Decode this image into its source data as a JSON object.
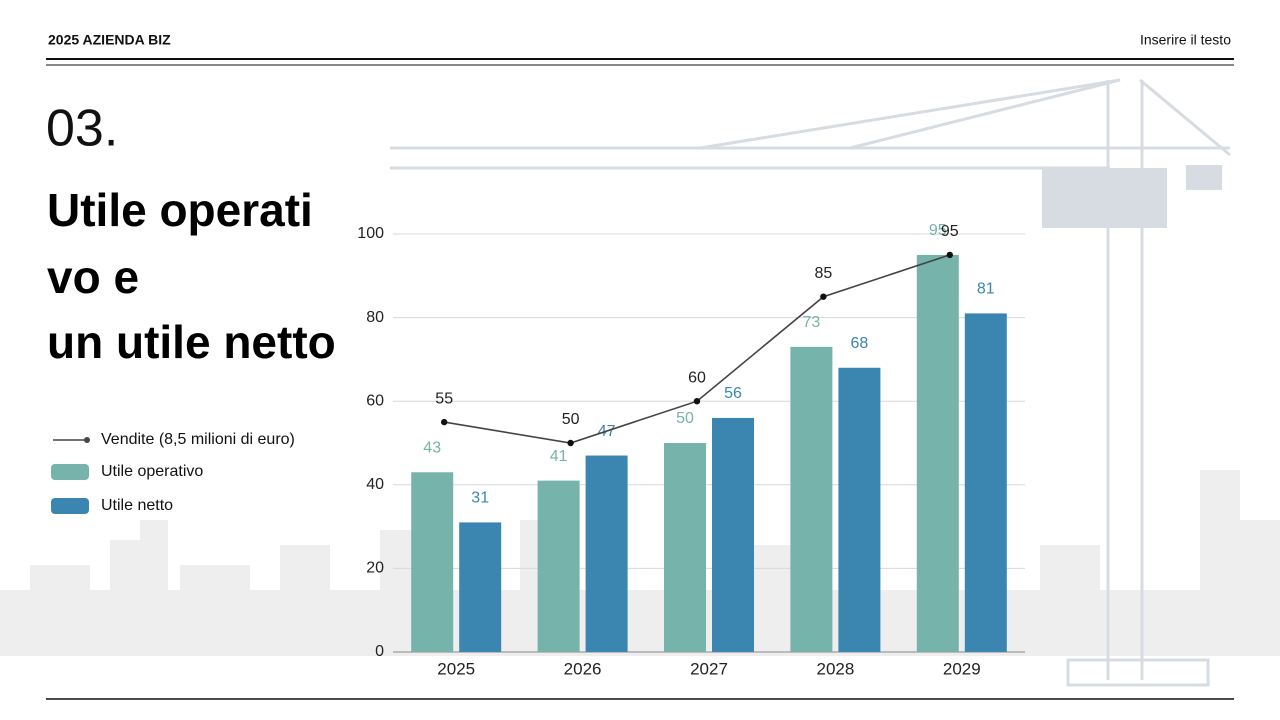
{
  "header": {
    "left": "2025 AZIENDA BIZ",
    "right": "Inserire il testo"
  },
  "section_number": "03.",
  "title_lines": [
    "Utile operati",
    "vo e",
    "un utile netto"
  ],
  "chart_data": {
    "type": "bar",
    "categories": [
      "2025",
      "2026",
      "2027",
      "2028",
      "2029"
    ],
    "series": [
      {
        "name": "Vendite (8,5 milioni di euro)",
        "type": "line",
        "color": "#444444",
        "values": [
          55,
          50,
          60,
          85,
          95
        ]
      },
      {
        "name": "Utile operativo",
        "type": "bar",
        "color": "#76b3ab",
        "values": [
          43,
          41,
          50,
          73,
          95
        ]
      },
      {
        "name": "Utile netto",
        "type": "bar",
        "color": "#3a86b0",
        "values": [
          31,
          47,
          56,
          68,
          81
        ]
      }
    ],
    "ylim": [
      0,
      100
    ],
    "yticks": [
      0,
      20,
      40,
      60,
      80,
      100
    ],
    "grid": true
  }
}
